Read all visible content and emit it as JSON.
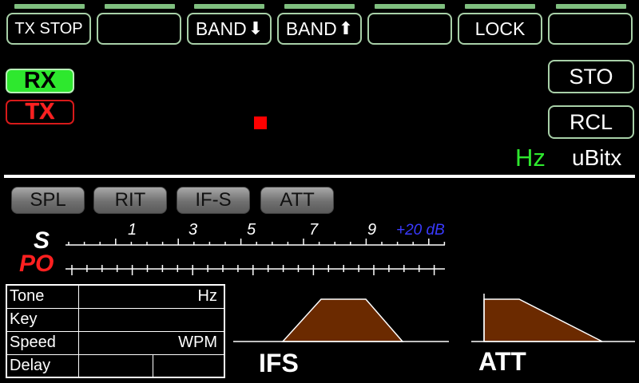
{
  "function_buttons": [
    {
      "label": "TX STOP",
      "arrow": ""
    },
    {
      "label": "",
      "arrow": ""
    },
    {
      "label": "BAND",
      "arrow": "⬇"
    },
    {
      "label": "BAND",
      "arrow": "⬆"
    },
    {
      "label": "",
      "arrow": ""
    },
    {
      "label": "LOCK",
      "arrow": ""
    },
    {
      "label": "",
      "arrow": ""
    }
  ],
  "indicators": {
    "rx": "RX",
    "tx": "TX"
  },
  "memory": {
    "store": "STO",
    "recall": "RCL"
  },
  "frequency_unit": "Hz",
  "brand": "uBitx",
  "toggles": [
    "SPL",
    "RIT",
    "IF-S",
    "ATT"
  ],
  "meter": {
    "s_label": "S",
    "po_label": "PO",
    "scale": [
      "1",
      "3",
      "5",
      "7",
      "9"
    ],
    "over": "+20 dB"
  },
  "keyer": [
    {
      "name": "Tone",
      "unit": "Hz"
    },
    {
      "name": "Key",
      "unit": ""
    },
    {
      "name": "Speed",
      "unit": "WPM"
    },
    {
      "name": "Delay",
      "unit": ""
    }
  ],
  "graphs": {
    "ifs": "IFS",
    "att": "ATT"
  },
  "colors": {
    "rx": "#2ee82e",
    "tx": "#ff2020",
    "filter_fill": "#6b2a00",
    "over": "#3a3aff"
  }
}
